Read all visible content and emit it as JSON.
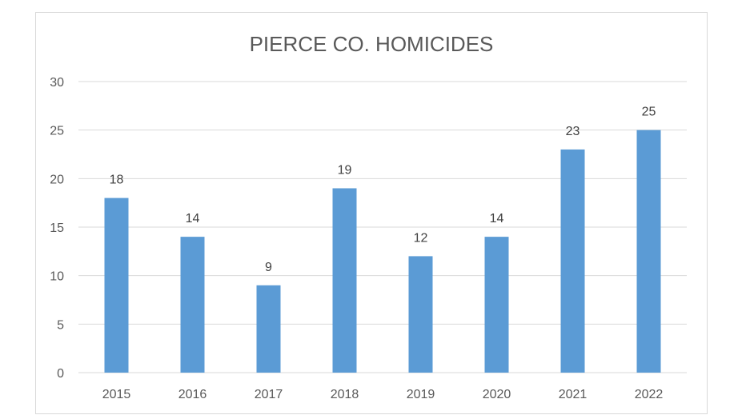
{
  "chart_data": {
    "type": "bar",
    "title": "PIERCE CO. HOMICIDES",
    "categories": [
      "2015",
      "2016",
      "2017",
      "2018",
      "2019",
      "2020",
      "2021",
      "2022"
    ],
    "values": [
      18,
      14,
      9,
      19,
      12,
      14,
      23,
      25
    ],
    "ylim": [
      0,
      30
    ],
    "yticks": [
      0,
      5,
      10,
      15,
      20,
      25,
      30
    ],
    "grid": true,
    "legend": "none",
    "bar_color": "#5b9bd5",
    "data_labels": true
  }
}
